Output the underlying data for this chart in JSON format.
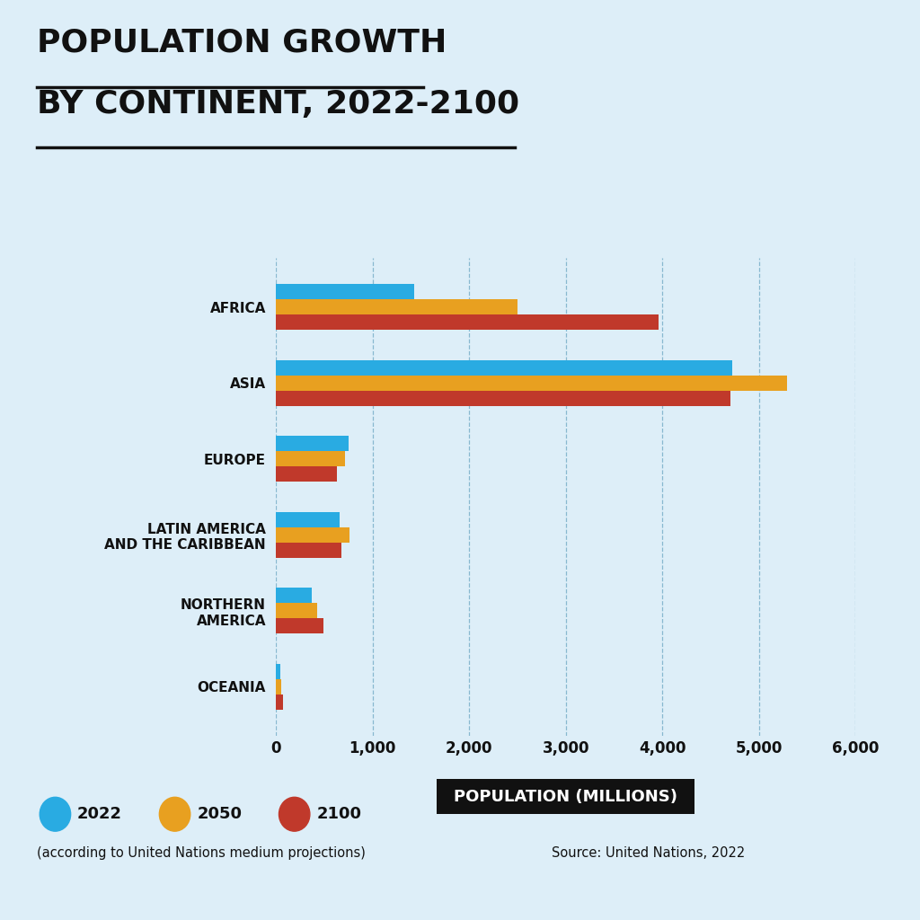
{
  "title_line1": "POPULATION GROWTH",
  "title_line2": "BY CONTINENT, 2022-2100",
  "background_color": "#ddeef8",
  "bar_colors": {
    "2022": "#29ABE2",
    "2050": "#E8A020",
    "2100": "#C0392B"
  },
  "categories": [
    "AFRICA",
    "ASIA",
    "EUROPE",
    "LATIN AMERICA\nAND THE CARIBBEAN",
    "NORTHERN\nAMERICA",
    "OCEANIA"
  ],
  "values_2022": [
    1430,
    4720,
    748,
    655,
    374,
    43
  ],
  "values_2050": [
    2500,
    5290,
    710,
    762,
    425,
    57
  ],
  "values_2100": [
    3960,
    4700,
    630,
    680,
    490,
    68
  ],
  "xlabel": "POPULATION (MILLIONS)",
  "xlim": [
    0,
    6000
  ],
  "xticks": [
    0,
    1000,
    2000,
    3000,
    4000,
    5000,
    6000
  ],
  "xtick_labels": [
    "0",
    "1,000",
    "2,000",
    "3,000",
    "4,000",
    "5,000",
    "6,000"
  ],
  "legend_labels": [
    "2022",
    "2050",
    "2100"
  ],
  "legend_note": "(according to United Nations medium projections)",
  "source_text": "Source: United Nations, 2022"
}
